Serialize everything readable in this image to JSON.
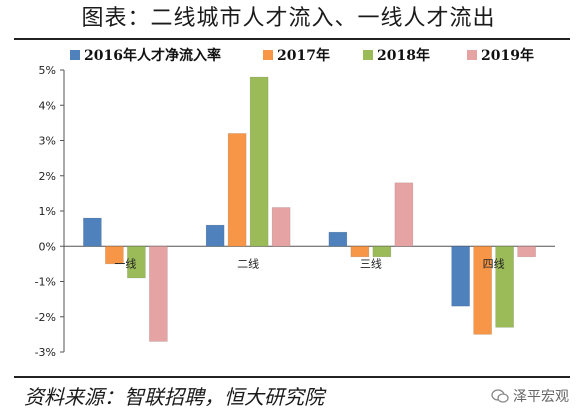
{
  "title": "图表：二线城市人才流入、一线人才流出",
  "source": "资料来源：智联招聘，恒大研究院",
  "watermark": "泽平宏观",
  "chart_data": {
    "type": "bar",
    "categories": [
      "一线",
      "二线",
      "三线",
      "四线"
    ],
    "series": [
      {
        "name": "2016年人才净流入率",
        "color": "#4f81bd",
        "values": [
          0.8,
          0.6,
          0.4,
          -1.7
        ]
      },
      {
        "name": "2017年",
        "color": "#f79646",
        "values": [
          -0.5,
          3.2,
          -0.3,
          -2.5
        ]
      },
      {
        "name": "2018年",
        "color": "#9bbb59",
        "values": [
          -0.9,
          4.8,
          -0.3,
          -2.3
        ]
      },
      {
        "name": "2019年",
        "color": "#e6a3a3",
        "values": [
          -2.7,
          1.1,
          1.8,
          -0.3
        ]
      }
    ],
    "yticks": [
      "5%",
      "4%",
      "3%",
      "2%",
      "1%",
      "0%",
      "-1%",
      "-2%",
      "-3%"
    ],
    "ylim": [
      -3,
      5
    ],
    "legend": "top",
    "grid": false
  }
}
